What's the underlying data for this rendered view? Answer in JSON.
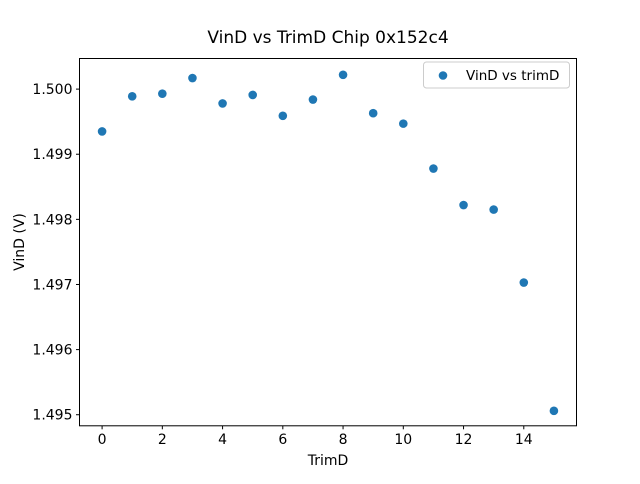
{
  "chart_data": {
    "type": "scatter",
    "title": "VinD vs TrimD Chip 0x152c4",
    "xlabel": "TrimD",
    "ylabel": "VinD (V)",
    "series": [
      {
        "name": "VinD vs trimD",
        "x": [
          0,
          1,
          2,
          3,
          4,
          5,
          6,
          7,
          8,
          9,
          10,
          11,
          12,
          13,
          14,
          15
        ],
        "y": [
          1.49935,
          1.49989,
          1.49993,
          1.50017,
          1.49978,
          1.49991,
          1.49959,
          1.49984,
          1.50022,
          1.49963,
          1.49947,
          1.49878,
          1.49822,
          1.49815,
          1.49703,
          1.49506
        ]
      }
    ],
    "xlim": [
      -0.75,
      15.75
    ],
    "ylim": [
      1.49483,
      1.50047
    ],
    "xticks": [
      0,
      2,
      4,
      6,
      8,
      10,
      12,
      14
    ],
    "xtick_labels": [
      "0",
      "2",
      "4",
      "6",
      "8",
      "10",
      "12",
      "14"
    ],
    "yticks": [
      1.495,
      1.496,
      1.497,
      1.498,
      1.499,
      1.5
    ],
    "ytick_labels": [
      "1.495",
      "1.496",
      "1.497",
      "1.498",
      "1.499",
      "1.500"
    ],
    "grid": false,
    "marker_color": "#1f77b4",
    "axes_color": "#000000",
    "legend": {
      "position": "upper right",
      "label": "VinD vs trimD"
    }
  }
}
